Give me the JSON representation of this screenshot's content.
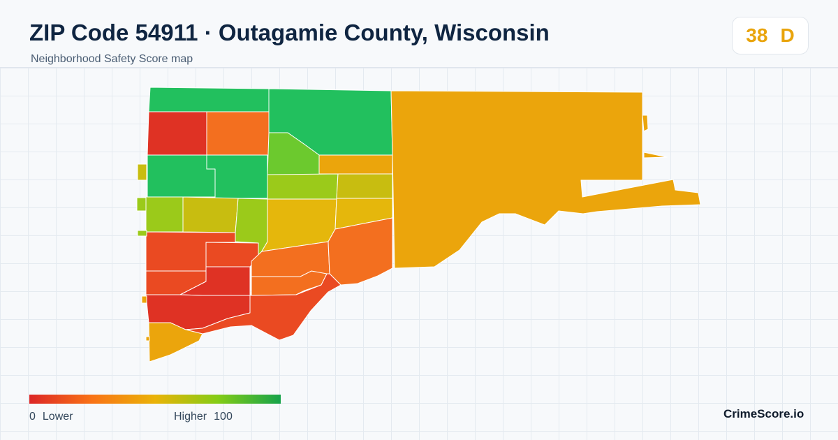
{
  "header": {
    "title": "ZIP Code 54911 · Outagamie County, Wisconsin",
    "subtitle": "Neighborhood Safety Score map"
  },
  "score": {
    "value": "38",
    "grade": "D",
    "color": "#e9a40c"
  },
  "legend": {
    "min_value": "0",
    "min_label": "Lower",
    "max_label": "Higher",
    "max_value": "100",
    "gradient_colors": [
      "#dc2626",
      "#f97316",
      "#eab308",
      "#84cc16",
      "#16a34a"
    ]
  },
  "brand": "CrimeScore.io",
  "map_colors": {
    "green": "#22c05e",
    "light_green": "#6cc92e",
    "yellow_green": "#9bca1a",
    "olive": "#c8bd10",
    "yellow": "#e5b70c",
    "amber": "#eba50c",
    "orange": "#f36f1f",
    "red_orange": "#ea4a22",
    "red": "#df3224"
  }
}
